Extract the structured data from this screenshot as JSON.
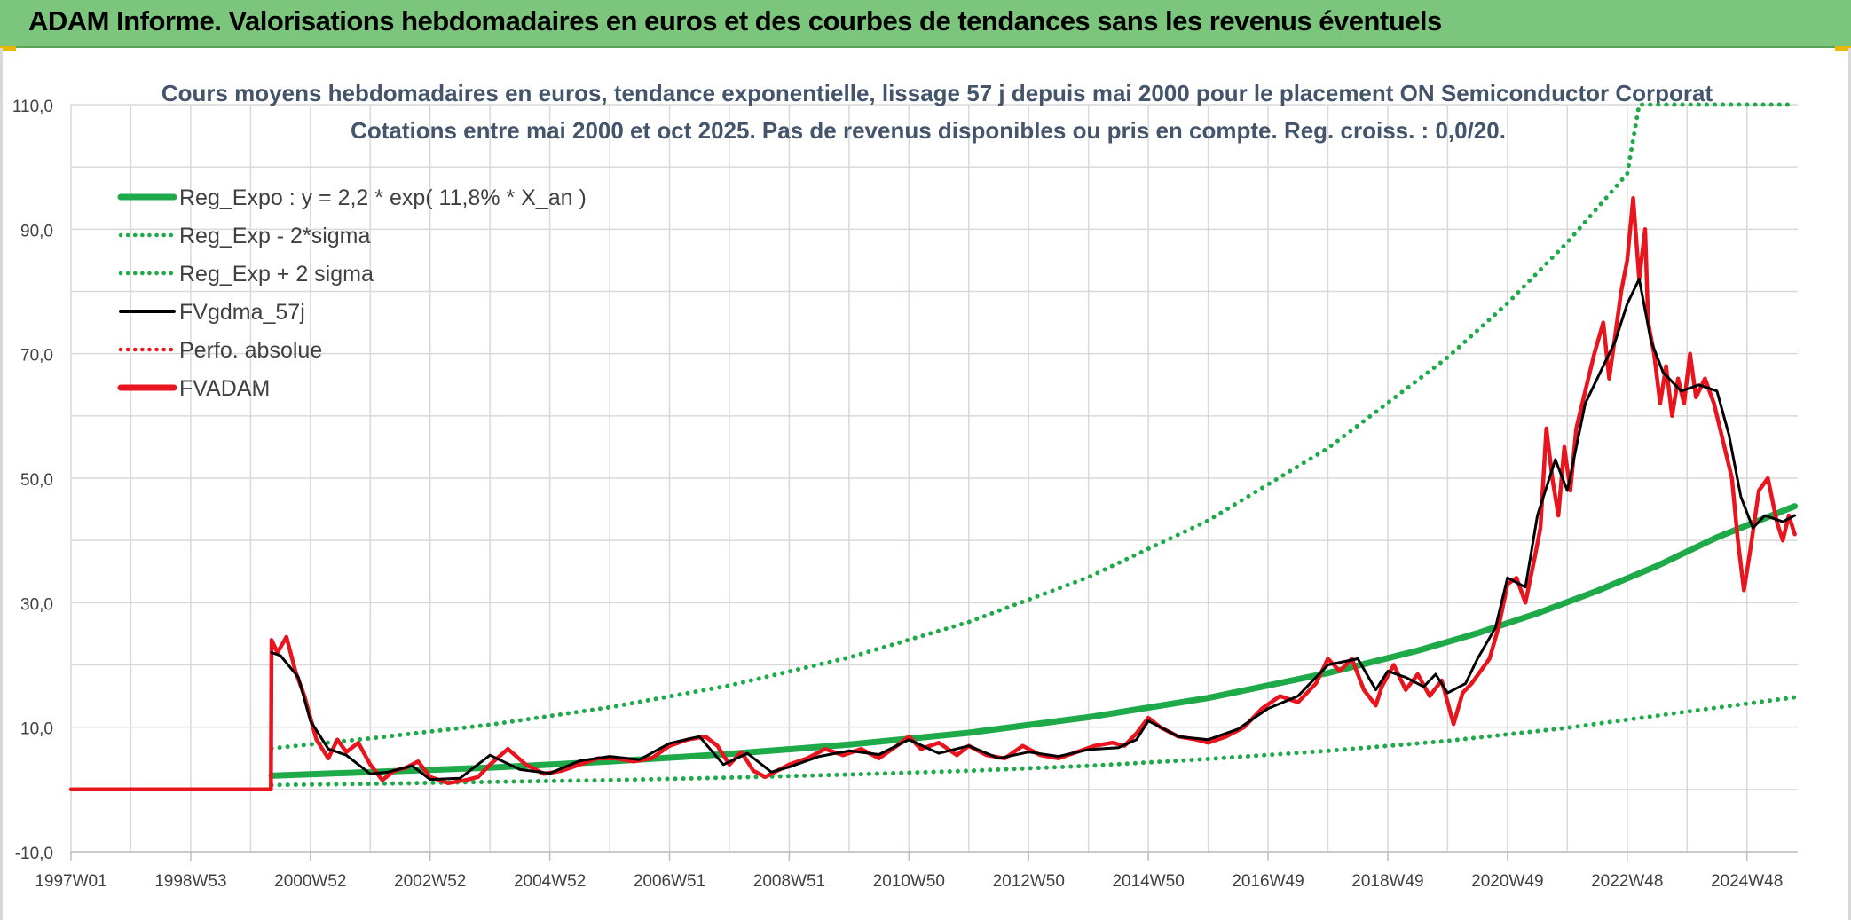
{
  "banner": {
    "title": "ADAM Informe. Valorisations hebdomadaires en euros et des courbes de tendances sans les revenus éventuels"
  },
  "colors": {
    "banner_bg": "#7cc57c",
    "trend_green": "#1faa4a",
    "series_black": "#000000",
    "series_red": "#e8141e",
    "grid": "#d9d9d9"
  },
  "chart_data": {
    "type": "line",
    "title": "Cours moyens hebdomadaires en euros, tendance exponentielle, lissage 57 j depuis mai 2000 pour le placement ON Semiconductor Corporat",
    "subtitle": "Cotations entre mai 2000 et oct 2025. Pas de revenus disponibles ou pris en compte. Reg. croiss. : 0,0/20.",
    "xlabel": "",
    "ylabel": "",
    "ylim": [
      -10,
      110
    ],
    "xlim": [
      1997.0,
      2025.85
    ],
    "grid": true,
    "legend_position": "top-left",
    "y_ticks": [
      "110,0",
      "90,0",
      "70,0",
      "50,0",
      "30,0",
      "10,0",
      "-10,0"
    ],
    "x_ticks": [
      "1997W01",
      "1998W53",
      "2000W52",
      "2002W52",
      "2004W52",
      "2006W51",
      "2008W51",
      "2010W50",
      "2012W50",
      "2014W50",
      "2016W49",
      "2018W49",
      "2020W49",
      "2022W48",
      "2024W48"
    ],
    "x_tick_years": [
      1997.0,
      1999.0,
      2001.0,
      2003.0,
      2005.0,
      2007.0,
      2009.0,
      2011.0,
      2013.0,
      2015.0,
      2017.0,
      2019.0,
      2021.0,
      2023.0,
      2025.0
    ],
    "series": [
      {
        "name": "Reg_Expo : y = 2,2 * exp( 11,8% *  X_an )",
        "style": "solid-thick",
        "color": "#1faa4a",
        "x": [
          2000.35,
          2002.0,
          2004.0,
          2006.0,
          2008.0,
          2010.0,
          2012.0,
          2014.0,
          2016.0,
          2018.0,
          2019.5,
          2020.5,
          2021.5,
          2022.5,
          2023.5,
          2024.5,
          2025.8
        ],
        "y": [
          2.2,
          2.8,
          3.5,
          4.5,
          5.7,
          7.2,
          9.1,
          11.6,
          14.7,
          18.7,
          22.3,
          25.1,
          28.3,
          31.9,
          35.9,
          40.5,
          45.5
        ]
      },
      {
        "name": "Reg_Exp - 2*sigma",
        "style": "dotted",
        "color": "#1faa4a",
        "x": [
          2000.35,
          2002.0,
          2004.0,
          2006.0,
          2008.0,
          2010.0,
          2012.0,
          2014.0,
          2016.0,
          2018.0,
          2020.0,
          2022.0,
          2024.0,
          2025.8
        ],
        "y": [
          0.7,
          0.9,
          1.2,
          1.5,
          1.9,
          2.4,
          3.0,
          3.8,
          4.9,
          6.2,
          7.8,
          9.9,
          12.5,
          14.8
        ]
      },
      {
        "name": "Reg_Exp + 2 sigma",
        "style": "dotted",
        "color": "#1faa4a",
        "x": [
          2000.35,
          2002.0,
          2004.0,
          2006.0,
          2008.0,
          2010.0,
          2012.0,
          2014.0,
          2016.0,
          2018.0,
          2020.0,
          2021.0,
          2022.0,
          2023.0,
          2023.2,
          2025.8
        ],
        "y": [
          6.6,
          8.2,
          10.4,
          13.2,
          16.7,
          21.2,
          26.9,
          34.1,
          43.2,
          54.8,
          69.4,
          78.1,
          87.9,
          98.9,
          110.0,
          110.0
        ]
      },
      {
        "name": "FVgdma_57j",
        "style": "solid",
        "color": "#000000",
        "x": [
          2000.35,
          2000.5,
          2000.8,
          2001.0,
          2001.3,
          2001.6,
          2002.0,
          2002.3,
          2002.7,
          2003.0,
          2003.5,
          2004.0,
          2004.5,
          2005.0,
          2005.5,
          2006.0,
          2006.5,
          2007.0,
          2007.5,
          2007.9,
          2008.3,
          2008.7,
          2009.0,
          2009.5,
          2010.0,
          2010.5,
          2011.0,
          2011.5,
          2012.0,
          2012.5,
          2013.0,
          2013.5,
          2014.0,
          2014.5,
          2014.8,
          2015.0,
          2015.5,
          2016.0,
          2016.5,
          2017.0,
          2017.5,
          2018.0,
          2018.5,
          2018.8,
          2019.0,
          2019.3,
          2019.6,
          2019.8,
          2020.0,
          2020.3,
          2020.5,
          2020.8,
          2021.0,
          2021.3,
          2021.5,
          2021.8,
          2022.0,
          2022.3,
          2022.5,
          2022.8,
          2023.0,
          2023.2,
          2023.4,
          2023.6,
          2023.9,
          2024.2,
          2024.5,
          2024.7,
          2024.9,
          2025.1,
          2025.3,
          2025.6,
          2025.8
        ],
        "y": [
          22.0,
          21.5,
          18.0,
          11.0,
          6.5,
          5.5,
          2.5,
          2.8,
          3.8,
          1.6,
          1.8,
          5.5,
          3.2,
          2.6,
          4.6,
          5.3,
          4.8,
          7.4,
          8.5,
          4.0,
          5.8,
          2.8,
          3.6,
          5.3,
          6.2,
          5.6,
          8.0,
          5.8,
          7.0,
          5.0,
          6.0,
          5.3,
          6.4,
          6.7,
          8.0,
          11.0,
          8.5,
          8.0,
          9.7,
          13.0,
          15.0,
          20.0,
          21.0,
          16.0,
          19.0,
          18.0,
          16.5,
          18.5,
          15.5,
          17.0,
          21.0,
          26.0,
          34.0,
          32.5,
          44.0,
          53.0,
          48.0,
          62.0,
          66.0,
          72.0,
          78.0,
          82.0,
          72.0,
          67.0,
          64.0,
          65.0,
          64.0,
          57.0,
          47.0,
          42.0,
          44.0,
          43.0,
          44.0
        ]
      },
      {
        "name": "Perfo. absolue",
        "style": "dotted",
        "color": "#e8141e",
        "x": [],
        "y": []
      },
      {
        "name": "FVADAM",
        "style": "solid-thick",
        "color": "#e8141e",
        "x": [
          1997.0,
          2000.34,
          2000.35,
          2000.45,
          2000.6,
          2000.75,
          2000.9,
          2001.1,
          2001.3,
          2001.45,
          2001.6,
          2001.8,
          2002.0,
          2002.2,
          2002.4,
          2002.6,
          2002.8,
          2003.0,
          2003.3,
          2003.6,
          2003.8,
          2004.0,
          2004.3,
          2004.6,
          2004.9,
          2005.2,
          2005.5,
          2005.8,
          2006.1,
          2006.4,
          2006.7,
          2007.0,
          2007.3,
          2007.6,
          2007.8,
          2008.0,
          2008.2,
          2008.4,
          2008.6,
          2008.8,
          2009.0,
          2009.3,
          2009.6,
          2009.9,
          2010.2,
          2010.5,
          2010.8,
          2011.0,
          2011.2,
          2011.5,
          2011.8,
          2012.0,
          2012.3,
          2012.6,
          2012.9,
          2013.2,
          2013.5,
          2013.8,
          2014.1,
          2014.4,
          2014.6,
          2014.8,
          2015.0,
          2015.2,
          2015.5,
          2015.8,
          2016.0,
          2016.3,
          2016.6,
          2016.9,
          2017.2,
          2017.5,
          2017.8,
          2018.0,
          2018.2,
          2018.4,
          2018.6,
          2018.8,
          2018.9,
          2019.1,
          2019.3,
          2019.5,
          2019.7,
          2019.9,
          2020.0,
          2020.1,
          2020.25,
          2020.4,
          2020.55,
          2020.7,
          2020.85,
          2021.0,
          2021.15,
          2021.3,
          2021.45,
          2021.55,
          2021.65,
          2021.75,
          2021.85,
          2021.95,
          2022.05,
          2022.15,
          2022.3,
          2022.45,
          2022.6,
          2022.7,
          2022.8,
          2022.9,
          2023.0,
          2023.1,
          2023.2,
          2023.3,
          2023.35,
          2023.45,
          2023.55,
          2023.65,
          2023.75,
          2023.85,
          2023.95,
          2024.05,
          2024.15,
          2024.3,
          2024.45,
          2024.6,
          2024.75,
          2024.85,
          2024.95,
          2025.05,
          2025.2,
          2025.35,
          2025.5,
          2025.6,
          2025.7,
          2025.8
        ],
        "y": [
          0.0,
          0.0,
          24.0,
          22.0,
          24.5,
          19.0,
          15.0,
          8.0,
          5.0,
          8.0,
          6.0,
          7.5,
          4.0,
          1.5,
          3.0,
          3.5,
          4.5,
          2.0,
          1.0,
          1.5,
          2.0,
          4.0,
          6.5,
          4.0,
          2.5,
          3.0,
          4.0,
          5.0,
          5.0,
          4.5,
          5.0,
          7.0,
          8.0,
          8.5,
          7.0,
          4.0,
          6.0,
          3.0,
          2.0,
          3.0,
          4.0,
          5.0,
          6.5,
          5.5,
          6.5,
          5.0,
          7.0,
          8.5,
          6.5,
          7.5,
          5.5,
          7.0,
          5.5,
          5.0,
          7.0,
          5.5,
          5.0,
          6.0,
          7.0,
          7.5,
          7.0,
          9.0,
          11.5,
          10.0,
          8.5,
          8.0,
          7.5,
          8.5,
          10.0,
          13.0,
          15.0,
          14.0,
          17.0,
          21.0,
          19.0,
          21.0,
          16.0,
          13.5,
          16.5,
          20.0,
          16.0,
          18.5,
          15.0,
          17.5,
          14.0,
          10.5,
          15.5,
          17.0,
          19.0,
          21.0,
          26.0,
          33.0,
          34.0,
          30.0,
          37.0,
          42.0,
          58.0,
          50.0,
          44.0,
          55.0,
          48.0,
          58.0,
          64.0,
          70.0,
          75.0,
          66.0,
          73.0,
          80.0,
          85.0,
          95.0,
          82.0,
          90.0,
          75.0,
          70.0,
          62.0,
          68.0,
          60.0,
          66.0,
          62.0,
          70.0,
          63.0,
          66.0,
          62.0,
          56.0,
          50.0,
          40.0,
          32.0,
          38.0,
          48.0,
          50.0,
          43.0,
          40.0,
          44.0,
          41.0
        ]
      }
    ]
  }
}
